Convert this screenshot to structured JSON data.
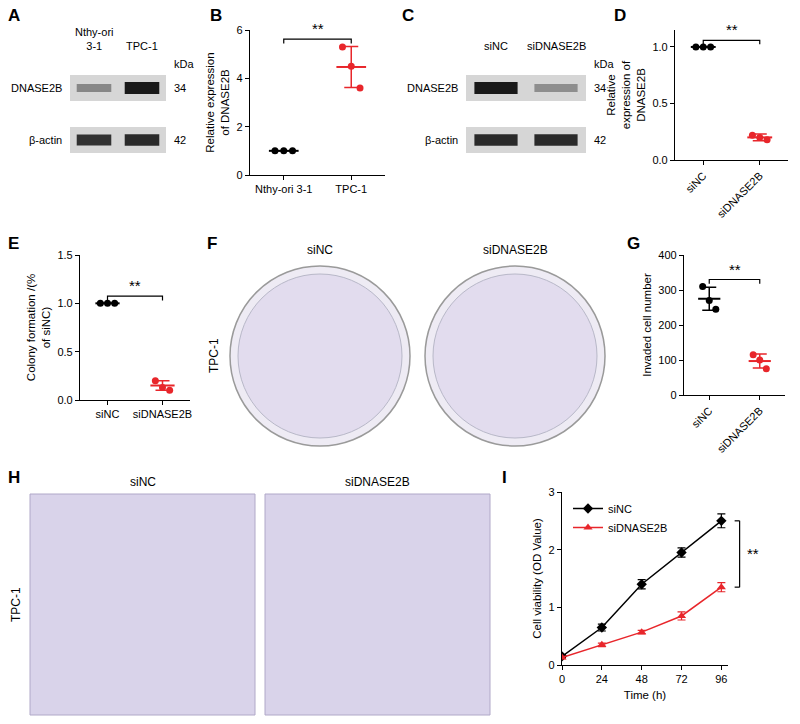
{
  "blots": [
    {
      "panel": "A",
      "lanes": [
        "Nthy-ori 3-1",
        "TPC-1"
      ],
      "unit": "kDa",
      "rows": [
        {
          "protein": "DNASE2B",
          "kda": 34,
          "intensity": [
            0.35,
            1
          ]
        },
        {
          "protein": "β-actin",
          "kda": 42,
          "intensity": [
            0.85,
            0.9
          ]
        }
      ]
    },
    {
      "panel": "C",
      "lanes": [
        "siNC",
        "siDNASE2B"
      ],
      "unit": "kDa",
      "rows": [
        {
          "protein": "DNASE2B",
          "kda": 34,
          "intensity": [
            1,
            0.3
          ]
        },
        {
          "protein": "β-actin",
          "kda": 42,
          "intensity": [
            0.9,
            0.9
          ]
        }
      ]
    }
  ],
  "images": [
    {
      "panel": "F",
      "side_label": "TPC-1",
      "columns": [
        "siNC",
        "siDNASE2B"
      ],
      "type": "dish"
    },
    {
      "panel": "H",
      "side_label": "TPC-1",
      "columns": [
        "siNC",
        "siDNASE2B"
      ],
      "type": "field"
    }
  ],
  "chart_data": [
    {
      "panel": "B",
      "type": "scatter",
      "categories": [
        "Nthy-ori 3-1",
        "TPC-1"
      ],
      "points": [
        [
          1,
          1,
          1
        ],
        [
          5.3,
          4.5,
          3.6
        ]
      ],
      "means": [
        1,
        4.47
      ],
      "errors": [
        0,
        0.85
      ],
      "colors": [
        "#000000",
        "#e8262b"
      ],
      "y_label": "Relative expression of DNASE2B",
      "ylim": [
        0,
        6
      ],
      "yticks": [
        0,
        2,
        4,
        6
      ],
      "annotations": [
        "**"
      ]
    },
    {
      "panel": "D",
      "type": "scatter",
      "categories": [
        "siNC",
        "siDNASE2B"
      ],
      "points": [
        [
          1,
          1,
          1
        ],
        [
          0.22,
          0.2,
          0.18
        ]
      ],
      "means": [
        1,
        0.2
      ],
      "errors": [
        0,
        0.03
      ],
      "colors": [
        "#000000",
        "#e8262b"
      ],
      "y_label": "Relative expression of DNASE2B",
      "ylim": [
        0,
        1.15
      ],
      "yticks": [
        {
          "value": 0,
          "label": "0.0"
        },
        {
          "value": 0.5,
          "label": "0.5"
        },
        {
          "value": 1,
          "label": "1.0"
        }
      ],
      "annotations": [
        "**"
      ]
    },
    {
      "panel": "E",
      "type": "scatter",
      "categories": [
        "siNC",
        "siDNASE2B"
      ],
      "points": [
        [
          1,
          1,
          1
        ],
        [
          0.2,
          0.13,
          0.1
        ]
      ],
      "means": [
        1,
        0.15
      ],
      "errors": [
        0,
        0.05
      ],
      "colors": [
        "#000000",
        "#e8262b"
      ],
      "y_label": "Colony formation /(% of siNC)",
      "ylim": [
        0,
        1.5
      ],
      "yticks": [
        {
          "value": 0,
          "label": "0.0"
        },
        {
          "value": 0.5,
          "label": "0.5"
        },
        {
          "value": 1,
          "label": "1.0"
        },
        {
          "value": 1.5,
          "label": "1.5"
        }
      ],
      "annotations": [
        "**"
      ]
    },
    {
      "panel": "G",
      "type": "scatter",
      "categories": [
        "siNC",
        "siDNASE2B"
      ],
      "points": [
        [
          310,
          270,
          245
        ],
        [
          115,
          100,
          75
        ]
      ],
      "means": [
        275,
        97
      ],
      "errors": [
        33,
        20
      ],
      "colors": [
        "#000000",
        "#e8262b"
      ],
      "y_label": "Invaded cell number",
      "ylim": [
        0,
        400
      ],
      "yticks": [
        0,
        100,
        200,
        300,
        400
      ],
      "annotations": [
        "**"
      ]
    },
    {
      "panel": "I",
      "type": "line",
      "x": [
        0,
        24,
        48,
        72,
        96
      ],
      "series": [
        {
          "name": "siNC",
          "color": "#000000",
          "marker": "diamond",
          "values": [
            0.15,
            0.65,
            1.4,
            1.95,
            2.5
          ],
          "errors": [
            0.03,
            0.06,
            0.08,
            0.08,
            0.12
          ]
        },
        {
          "name": "siDNASE2B",
          "color": "#e8262b",
          "marker": "triangle-up",
          "values": [
            0.13,
            0.35,
            0.57,
            0.85,
            1.35
          ],
          "errors": [
            0.02,
            0.03,
            0.03,
            0.07,
            0.08
          ]
        }
      ],
      "x_label": "Time (h)",
      "y_label": "Cell viability (OD Value)",
      "xlim": [
        0,
        100
      ],
      "xticks": [
        0,
        24,
        48,
        72,
        96
      ],
      "ylim": [
        0,
        3
      ],
      "yticks": [
        0,
        1,
        2,
        3
      ],
      "legend": "upper left",
      "annotations": [
        "**"
      ]
    }
  ]
}
